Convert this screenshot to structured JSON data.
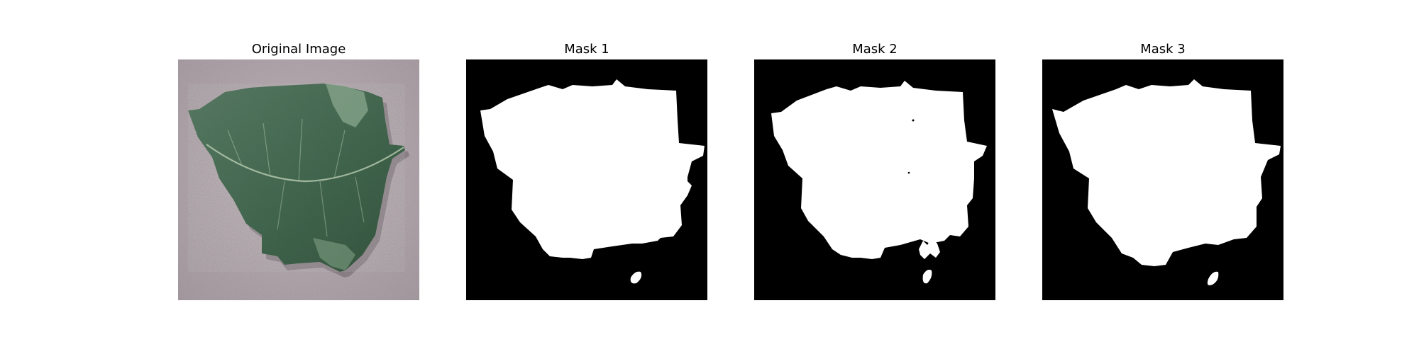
{
  "figure": {
    "panels": [
      {
        "title": "Original Image"
      },
      {
        "title": "Mask 1"
      },
      {
        "title": "Mask 2"
      },
      {
        "title": "Mask 3"
      }
    ]
  },
  "colors": {
    "background": "#ffffff",
    "mask_background": "#000000",
    "mask_foreground": "#ffffff",
    "surface": "#b8adb2",
    "leaf_dark": "#3f5f4b",
    "leaf_mid": "#5d7f67",
    "leaf_light": "#8fae91",
    "vein": "#c8d8c0"
  }
}
